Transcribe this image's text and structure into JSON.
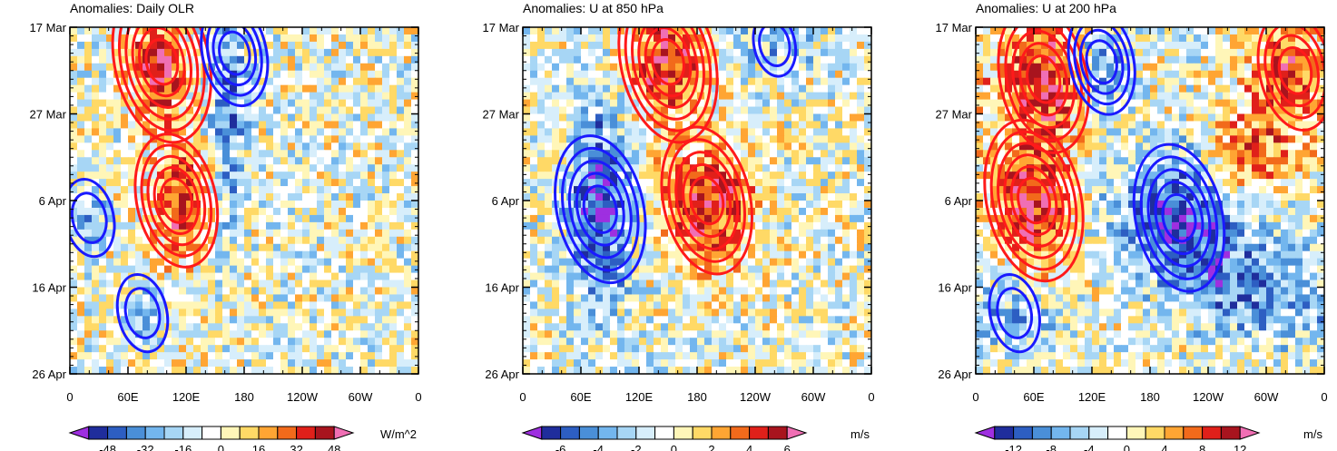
{
  "chart_data": [
    {
      "type": "heatmap",
      "title": "Anomalies: Daily OLR",
      "units": "W/m^2",
      "y_tick_labels": [
        "17 Mar",
        "27 Mar",
        "6 Apr",
        "16 Apr",
        "26 Apr"
      ],
      "x_tick_labels": [
        "0",
        "60E",
        "120E",
        "180",
        "120W",
        "60W",
        "0"
      ],
      "x_range": [
        0,
        360
      ],
      "y_range_days": [
        0,
        40
      ],
      "colorbar_ticks": [
        -48,
        -32,
        -16,
        0,
        16,
        32,
        48
      ],
      "colorbar_tick_labels": [
        "-48",
        "-32",
        "-16",
        "0",
        "16",
        "32",
        "48"
      ],
      "colorbar_levels": [
        -56,
        -48,
        -40,
        -32,
        -24,
        -16,
        -8,
        0,
        8,
        16,
        24,
        32,
        40,
        48,
        56
      ],
      "red_contour_centers": [
        {
          "lon": 95,
          "day": 4,
          "amp": 1.0
        },
        {
          "lon": 110,
          "day": 20,
          "amp": 0.8
        }
      ],
      "blue_contour_centers": [
        {
          "lon": 170,
          "day": 3,
          "amp": 0.6
        },
        {
          "lon": 20,
          "day": 22,
          "amp": 0.4
        },
        {
          "lon": 75,
          "day": 33,
          "amp": 0.4
        }
      ]
    },
    {
      "type": "heatmap",
      "title": "Anomalies: U at 850 hPa",
      "units": "m/s",
      "y_tick_labels": [
        "17 Mar",
        "27 Mar",
        "6 Apr",
        "16 Apr",
        "26 Apr"
      ],
      "x_tick_labels": [
        "0",
        "60E",
        "120E",
        "180",
        "120W",
        "60W",
        "0"
      ],
      "x_range": [
        0,
        360
      ],
      "y_range_days": [
        0,
        40
      ],
      "colorbar_ticks": [
        -6,
        -4,
        -2,
        0,
        2,
        4,
        6
      ],
      "colorbar_tick_labels": [
        "-6",
        "-4",
        "-2",
        "0",
        "2",
        "4",
        "6"
      ],
      "colorbar_levels": [
        -7,
        -6,
        -5,
        -4,
        -3,
        -2,
        -1,
        0,
        1,
        2,
        3,
        4,
        5,
        6,
        7
      ],
      "red_contour_centers": [
        {
          "lon": 150,
          "day": 4,
          "amp": 1.0
        },
        {
          "lon": 190,
          "day": 20,
          "amp": 0.9
        }
      ],
      "blue_contour_centers": [
        {
          "lon": 80,
          "day": 21,
          "amp": 0.9
        },
        {
          "lon": 260,
          "day": 2,
          "amp": 0.3
        }
      ]
    },
    {
      "type": "heatmap",
      "title": "Anomalies: U at 200 hPa",
      "units": "m/s",
      "y_tick_labels": [
        "17 Mar",
        "27 Mar",
        "6 Apr",
        "16 Apr",
        "26 Apr"
      ],
      "x_tick_labels": [
        "0",
        "60E",
        "120E",
        "180",
        "120W",
        "60W",
        "0"
      ],
      "x_range": [
        0,
        360
      ],
      "y_range_days": [
        0,
        40
      ],
      "colorbar_ticks": [
        -12,
        -8,
        -4,
        0,
        4,
        8,
        12
      ],
      "colorbar_tick_labels": [
        "-12",
        "-8",
        "-4",
        "0",
        "4",
        "8",
        "12"
      ],
      "colorbar_levels": [
        -14,
        -12,
        -10,
        -8,
        -6,
        -4,
        -2,
        0,
        2,
        4,
        6,
        8,
        10,
        12,
        14
      ],
      "red_contour_centers": [
        {
          "lon": 70,
          "day": 6,
          "amp": 0.9
        },
        {
          "lon": 60,
          "day": 20,
          "amp": 1.0
        },
        {
          "lon": 330,
          "day": 5,
          "amp": 0.7
        }
      ],
      "blue_contour_centers": [
        {
          "lon": 130,
          "day": 4,
          "amp": 0.6
        },
        {
          "lon": 210,
          "day": 22,
          "amp": 0.9
        },
        {
          "lon": 40,
          "day": 33,
          "amp": 0.4
        }
      ]
    }
  ],
  "colorbar_colors": [
    "#9e2fe0",
    "#1f2d9c",
    "#2d5ec2",
    "#4a8fd8",
    "#73b6ee",
    "#a7d6f5",
    "#d7eefb",
    "#ffffff",
    "#fff6b8",
    "#ffd966",
    "#ffa533",
    "#f26a1b",
    "#e0201a",
    "#a8141e",
    "#f06fb4"
  ],
  "contour_colors": {
    "positive": "#ff1a1a",
    "negative": "#1a1aff"
  }
}
